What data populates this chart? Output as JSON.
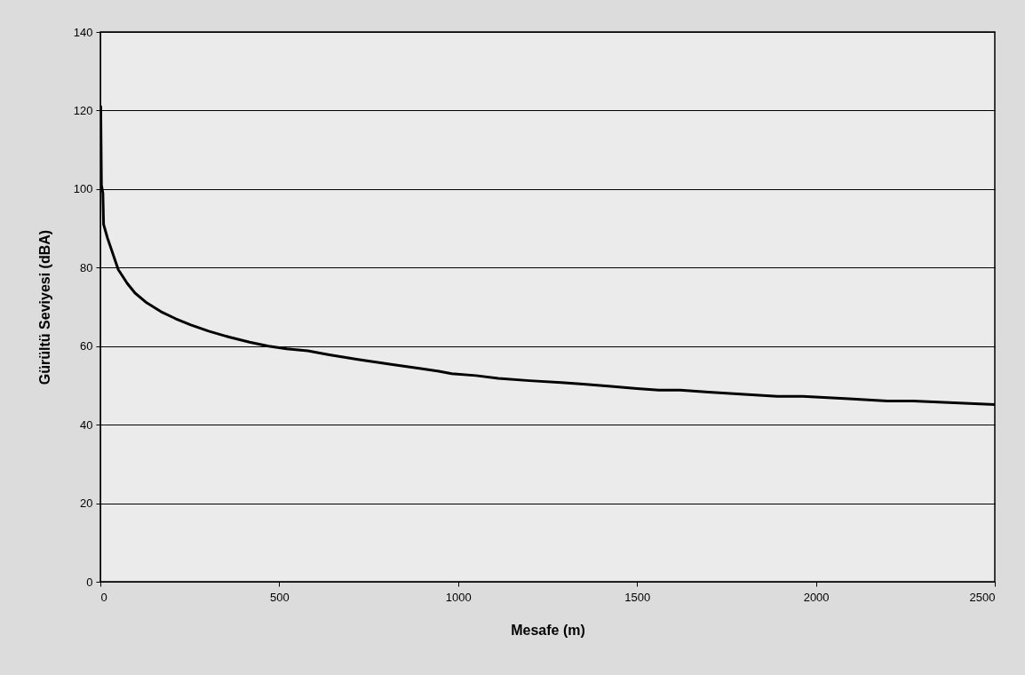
{
  "chart_data": {
    "type": "line",
    "xlabel": "Mesafe (m)",
    "ylabel": "Gürültü Seviyesi (dBA)",
    "x": [
      1,
      3,
      7,
      9,
      20,
      50,
      75,
      97,
      130,
      169,
      210,
      253,
      303,
      360,
      417,
      470,
      521,
      580,
      640,
      720,
      817,
      900,
      946,
      982,
      1050,
      1112,
      1200,
      1289,
      1350,
      1420,
      1500,
      1561,
      1621,
      1700,
      1800,
      1892,
      1963,
      2093,
      2200,
      2272,
      2400,
      2500
    ],
    "series": [
      {
        "color": "#000000",
        "values": [
          121,
          101,
          99,
          91,
          87.5,
          79.5,
          76,
          73.5,
          71,
          68.8,
          67,
          65.4,
          63.8,
          62.3,
          61,
          60,
          59.3,
          58.8,
          57.8,
          56.6,
          55.3,
          54.2,
          53.6,
          53,
          52.5,
          51.8,
          51.2,
          50.7,
          50.3,
          49.8,
          49.2,
          48.8,
          48.8,
          48.3,
          47.7,
          47.2,
          47.2,
          46.6,
          46,
          46,
          45.5,
          45.1
        ]
      }
    ],
    "xlim": [
      0,
      2500
    ],
    "xticks": [
      0,
      500,
      1000,
      1500,
      2000,
      2500
    ],
    "ylim": [
      0,
      140
    ],
    "yticks": [
      0,
      20,
      40,
      60,
      80,
      100,
      120,
      140
    ],
    "grid": "y",
    "legend": false,
    "marker": "none",
    "line_style": "solid"
  }
}
